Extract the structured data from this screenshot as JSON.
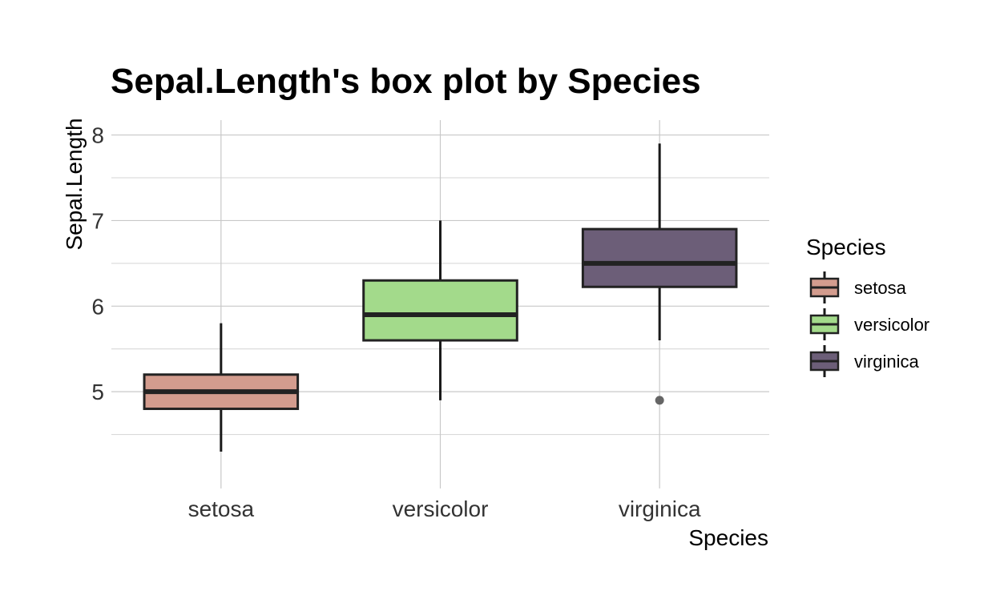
{
  "chart_data": {
    "type": "box",
    "title": "Sepal.Length's box plot by Species",
    "xlabel": "Species",
    "ylabel": "Sepal.Length",
    "categories": [
      "setosa",
      "versicolor",
      "virginica"
    ],
    "ylim": [
      4.15,
      8.08
    ],
    "yticks": [
      5,
      6,
      7,
      8
    ],
    "y_minor_ticks": [
      4.5,
      5.5,
      6.5,
      7.5
    ],
    "grid": true,
    "legend": {
      "title": "Species",
      "placement": "right",
      "entries": [
        "setosa",
        "versicolor",
        "virginica"
      ]
    },
    "series": [
      {
        "name": "setosa",
        "color": "#d39c8e",
        "min": 4.3,
        "q1": 4.8,
        "median": 5.0,
        "q3": 5.2,
        "max": 5.8,
        "outliers": []
      },
      {
        "name": "versicolor",
        "color": "#a3da8b",
        "min": 4.9,
        "q1": 5.6,
        "median": 5.9,
        "q3": 6.3,
        "max": 7.0,
        "outliers": []
      },
      {
        "name": "virginica",
        "color": "#6c5e78",
        "min": 5.6,
        "q1": 6.225,
        "median": 6.5,
        "q3": 6.9,
        "max": 7.9,
        "outliers": [
          4.9
        ]
      }
    ]
  }
}
